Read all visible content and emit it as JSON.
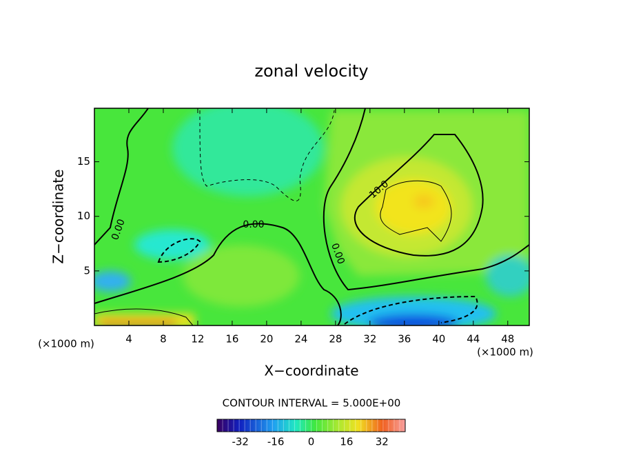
{
  "chart_data": {
    "type": "contour",
    "title": "zonal velocity",
    "x_label": "X−coordinate",
    "y_label": "Z−coordinate",
    "unit_label": "(×1000 m)",
    "xlim": [
      0,
      50.5
    ],
    "xticks": [
      4,
      8,
      12,
      16,
      20,
      24,
      28,
      32,
      36,
      40,
      44,
      48
    ],
    "ylim": [
      0,
      19.9
    ],
    "yticks": [
      5,
      10,
      15
    ],
    "contour_labels": [
      "0.00",
      "0.00",
      "0.00",
      "10.0"
    ],
    "footer": "CONTOUR INTERVAL = 5.000E+00",
    "colorbar": {
      "lim": [
        -42.5,
        42.5
      ],
      "ticks": [
        -32,
        -16,
        0,
        16,
        32
      ]
    }
  }
}
